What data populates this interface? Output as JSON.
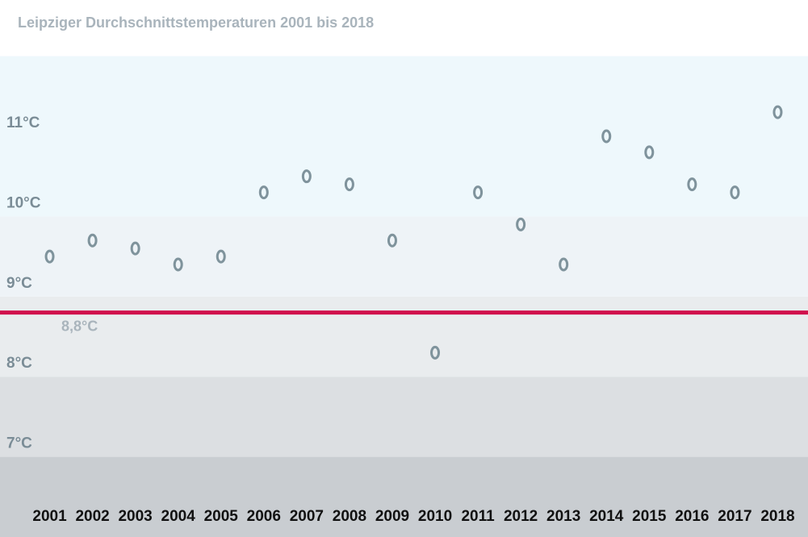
{
  "chart_data": {
    "type": "scatter",
    "title": "Leipziger Durchschnittstemperaturen 2001 bis 2018",
    "categories": [
      "2001",
      "2002",
      "2003",
      "2004",
      "2005",
      "2006",
      "2007",
      "2008",
      "2009",
      "2010",
      "2011",
      "2012",
      "2013",
      "2014",
      "2015",
      "2016",
      "2017",
      "2018"
    ],
    "values": [
      9.5,
      9.7,
      9.6,
      9.4,
      9.5,
      10.3,
      10.5,
      10.4,
      9.7,
      8.3,
      10.3,
      9.9,
      9.4,
      11.0,
      10.8,
      10.4,
      10.3,
      11.3
    ],
    "color": "#7f939c",
    "ylim": [
      6,
      12.7
    ],
    "yticks": [
      {
        "value": 7,
        "label": "7°C"
      },
      {
        "value": 8,
        "label": "8°C"
      },
      {
        "value": 9,
        "label": "9°C"
      },
      {
        "value": 10,
        "label": "10°C"
      },
      {
        "value": 11,
        "label": "11°C"
      }
    ],
    "band_colors": [
      "#c9cdd1",
      "#dcdfe2",
      "#e9ecee",
      "#eef3f7",
      "#eef8fc"
    ],
    "reference_line": {
      "value": 8.8,
      "label": "8,8°C",
      "color": "#d0104c"
    }
  }
}
